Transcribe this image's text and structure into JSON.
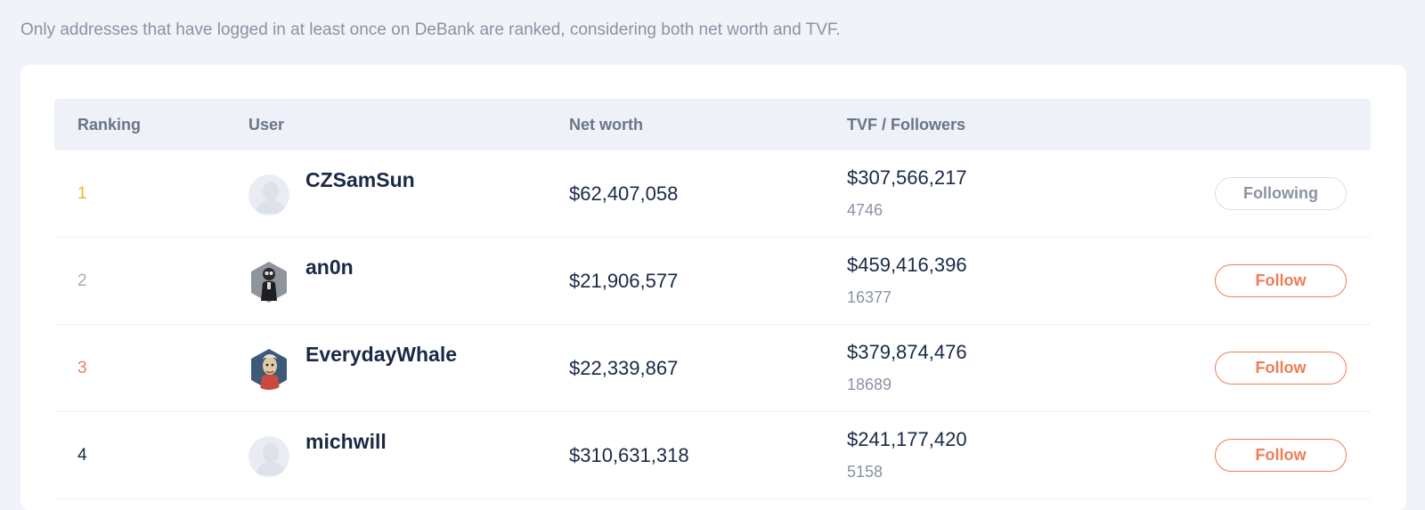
{
  "notice": "Only addresses that have logged in at least once on DeBank are ranked, considering both net worth and TVF.",
  "columns": {
    "ranking": "Ranking",
    "user": "User",
    "net_worth": "Net worth",
    "tvf_followers": "TVF / Followers"
  },
  "colors": {
    "gold": "#f0b92d",
    "silver": "#a3abb8",
    "bronze": "#ef7d57",
    "accent": "#ef7d57"
  },
  "rows": [
    {
      "rank": "1",
      "username": "CZSamSun",
      "avatar": "default-avatar",
      "net_worth": "$62,407,058",
      "tvf": "$307,566,217",
      "followers": "4746",
      "button": "Following"
    },
    {
      "rank": "2",
      "username": "an0n",
      "avatar": "suited-figure-avatar",
      "net_worth": "$21,906,577",
      "tvf": "$459,416,396",
      "followers": "16377",
      "button": "Follow"
    },
    {
      "rank": "3",
      "username": "EverydayWhale",
      "avatar": "cartoon-character-avatar",
      "net_worth": "$22,339,867",
      "tvf": "$379,874,476",
      "followers": "18689",
      "button": "Follow"
    },
    {
      "rank": "4",
      "username": "michwill",
      "avatar": "default-avatar",
      "net_worth": "$310,631,318",
      "tvf": "$241,177,420",
      "followers": "5158",
      "button": "Follow"
    }
  ]
}
